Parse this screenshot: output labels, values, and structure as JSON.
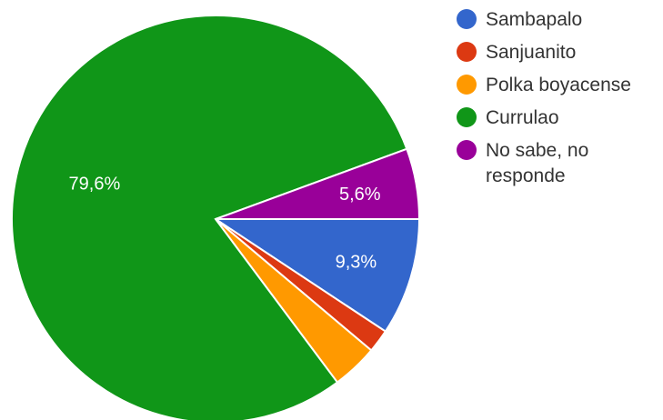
{
  "chart_data": {
    "type": "pie",
    "slices": [
      {
        "name": "Sambapalo",
        "value": 9.3,
        "label": "9,3%",
        "color": "#3366cc"
      },
      {
        "name": "Sanjuanito",
        "value": 1.85,
        "label": "",
        "color": "#dc3912"
      },
      {
        "name": "Polka boyacense",
        "value": 3.65,
        "label": "",
        "color": "#ff9900"
      },
      {
        "name": "Currulao",
        "value": 79.6,
        "label": "79,6%",
        "color": "#109618"
      },
      {
        "name": "No sabe, no responde",
        "value": 5.6,
        "label": "5,6%",
        "color": "#990099"
      }
    ],
    "legend_position": "right"
  }
}
